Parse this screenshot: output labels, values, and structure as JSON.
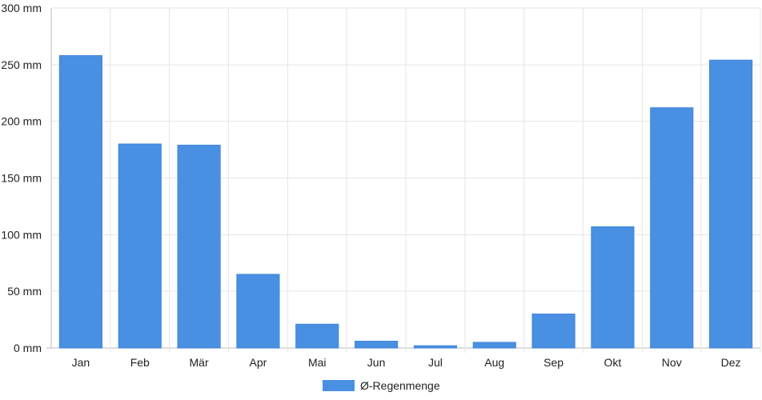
{
  "chart_data": {
    "type": "bar",
    "categories": [
      "Jan",
      "Feb",
      "Mär",
      "Apr",
      "Mai",
      "Jun",
      "Jul",
      "Aug",
      "Sep",
      "Okt",
      "Nov",
      "Dez"
    ],
    "series": [
      {
        "name": "Ø-Regenmenge",
        "values": [
          258,
          180,
          179,
          65,
          21,
          6,
          2,
          5,
          30,
          107,
          212,
          254
        ],
        "color": "#4a90e2"
      }
    ],
    "title": "",
    "xlabel": "",
    "ylabel": "",
    "ylim": [
      0,
      300
    ],
    "yticks": [
      0,
      50,
      100,
      150,
      200,
      250,
      300
    ],
    "ytick_labels": [
      "0 mm",
      "50 mm",
      "100 mm",
      "150 mm",
      "200 mm",
      "250 mm",
      "300 mm"
    ],
    "grid": true,
    "legend_position": "bottom-center"
  }
}
